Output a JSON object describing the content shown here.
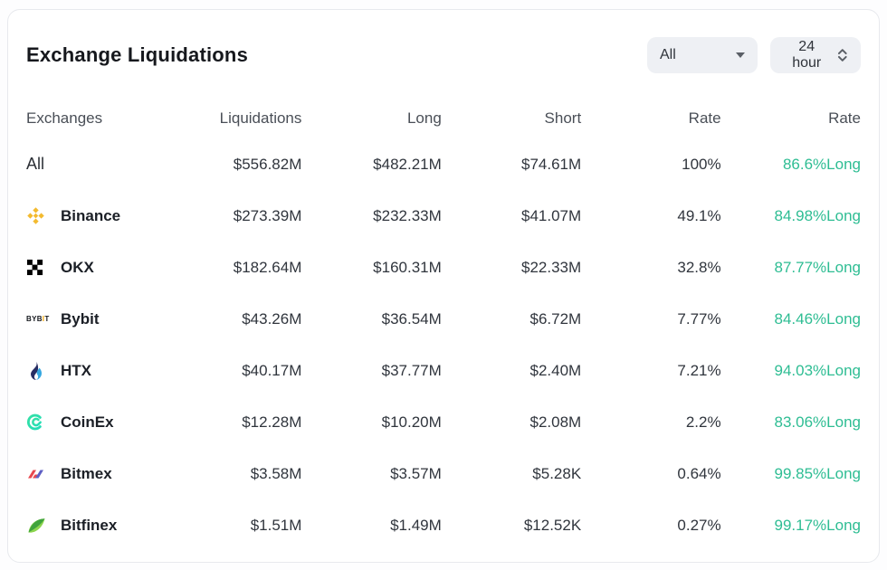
{
  "card": {
    "title": "Exchange Liquidations",
    "filters": {
      "exchange": {
        "value": "All"
      },
      "time": {
        "value": "24 hour"
      }
    },
    "table": {
      "columns": [
        "Exchanges",
        "Liquidations",
        "Long",
        "Short",
        "Rate",
        "Rate"
      ],
      "rows": [
        {
          "icon": "",
          "exchange": "All",
          "liquidations": "$556.82M",
          "long": "$482.21M",
          "short": "$74.61M",
          "rate": "100%",
          "long_rate": "86.6%Long"
        },
        {
          "icon": "binance",
          "exchange": "Binance",
          "liquidations": "$273.39M",
          "long": "$232.33M",
          "short": "$41.07M",
          "rate": "49.1%",
          "long_rate": "84.98%Long"
        },
        {
          "icon": "okx",
          "exchange": "OKX",
          "liquidations": "$182.64M",
          "long": "$160.31M",
          "short": "$22.33M",
          "rate": "32.8%",
          "long_rate": "87.77%Long"
        },
        {
          "icon": "bybit",
          "exchange": "Bybit",
          "liquidations": "$43.26M",
          "long": "$36.54M",
          "short": "$6.72M",
          "rate": "7.77%",
          "long_rate": "84.46%Long"
        },
        {
          "icon": "htx",
          "exchange": "HTX",
          "liquidations": "$40.17M",
          "long": "$37.77M",
          "short": "$2.40M",
          "rate": "7.21%",
          "long_rate": "94.03%Long"
        },
        {
          "icon": "coinex",
          "exchange": "CoinEx",
          "liquidations": "$12.28M",
          "long": "$10.20M",
          "short": "$2.08M",
          "rate": "2.2%",
          "long_rate": "83.06%Long"
        },
        {
          "icon": "bitmex",
          "exchange": "Bitmex",
          "liquidations": "$3.58M",
          "long": "$3.57M",
          "short": "$5.28K",
          "rate": "0.64%",
          "long_rate": "99.85%Long"
        },
        {
          "icon": "bitfinex",
          "exchange": "Bitfinex",
          "liquidations": "$1.51M",
          "long": "$1.49M",
          "short": "$12.52K",
          "rate": "0.27%",
          "long_rate": "99.17%Long"
        }
      ]
    },
    "colors": {
      "long_rate_green": "#2EBD93",
      "binance_yellow": "#F3BA2F",
      "bybit_accent": "#F7A600",
      "okx_black": "#000000",
      "htx_navy": "#272D63",
      "htx_blue": "#35A7E0",
      "coinex_teal": "#21DDB8",
      "bitmex_red": "#E8474E",
      "bitmex_indigo": "#5D5FC4",
      "bitfinex_dark_green": "#3FA33C",
      "bitfinex_light_green": "#8CD54E"
    }
  }
}
